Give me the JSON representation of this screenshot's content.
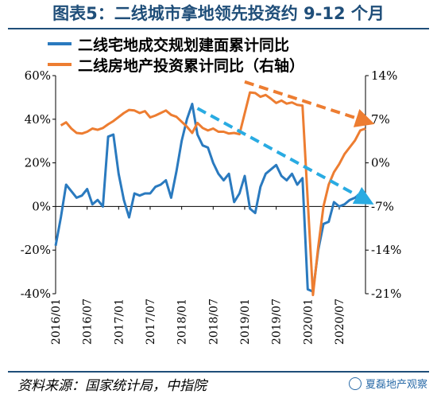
{
  "figure": {
    "title": "图表5：二线城市拿地领先投资约 9-12 个月",
    "source": "资料来源：国家统计局，中指院",
    "watermark": "夏磊地产观察"
  },
  "chart_data": {
    "type": "line",
    "title": "图表5：二线城市拿地领先投资约 9-12 个月",
    "x_ticks": [
      "2016/01",
      "2016/07",
      "2017/01",
      "2017/07",
      "2018/01",
      "2018/07",
      "2019/01",
      "2019/07",
      "2020/01",
      "2020/07"
    ],
    "x_range": [
      "2016/01",
      "2020/12"
    ],
    "y_left": {
      "ticks": [
        -40,
        -20,
        0,
        20,
        40,
        60
      ],
      "range": [
        -40,
        60
      ],
      "unit": "%"
    },
    "y_right": {
      "ticks": [
        -21,
        -14,
        -7,
        0,
        7,
        14
      ],
      "range": [
        -21,
        14
      ],
      "unit": "%"
    },
    "grid": false,
    "legend_position": "top",
    "series": [
      {
        "name": "二线宅地成交规划建面累计同比",
        "axis": "left",
        "color": "#2a7abf",
        "points": [
          [
            "2016/01",
            -18
          ],
          [
            "2016/02",
            -5
          ],
          [
            "2016/03",
            10
          ],
          [
            "2016/04",
            7
          ],
          [
            "2016/05",
            4
          ],
          [
            "2016/06",
            5
          ],
          [
            "2016/07",
            8
          ],
          [
            "2016/08",
            1
          ],
          [
            "2016/09",
            3
          ],
          [
            "2016/10",
            0
          ],
          [
            "2016/11",
            32
          ],
          [
            "2016/12",
            33
          ],
          [
            "2017/01",
            15
          ],
          [
            "2017/02",
            3
          ],
          [
            "2017/03",
            -5
          ],
          [
            "2017/04",
            6
          ],
          [
            "2017/05",
            5
          ],
          [
            "2017/06",
            6
          ],
          [
            "2017/07",
            6
          ],
          [
            "2017/08",
            9
          ],
          [
            "2017/09",
            10
          ],
          [
            "2017/10",
            12
          ],
          [
            "2017/11",
            4
          ],
          [
            "2017/12",
            16
          ],
          [
            "2018/01",
            30
          ],
          [
            "2018/02",
            40
          ],
          [
            "2018/03",
            47
          ],
          [
            "2018/04",
            33
          ],
          [
            "2018/05",
            28
          ],
          [
            "2018/06",
            27
          ],
          [
            "2018/07",
            20
          ],
          [
            "2018/08",
            15
          ],
          [
            "2018/09",
            12
          ],
          [
            "2018/10",
            15
          ],
          [
            "2018/11",
            2
          ],
          [
            "2018/12",
            6
          ],
          [
            "2019/01",
            14
          ],
          [
            "2019/02",
            -1
          ],
          [
            "2019/03",
            -3
          ],
          [
            "2019/04",
            9
          ],
          [
            "2019/05",
            15
          ],
          [
            "2019/06",
            17
          ],
          [
            "2019/07",
            19
          ],
          [
            "2019/08",
            14
          ],
          [
            "2019/09",
            12
          ],
          [
            "2019/10",
            15
          ],
          [
            "2019/11",
            10
          ],
          [
            "2019/12",
            13
          ],
          [
            "2020/01",
            -38
          ],
          [
            "2020/02",
            -39
          ],
          [
            "2020/03",
            -20
          ],
          [
            "2020/04",
            -8
          ],
          [
            "2020/05",
            -7
          ],
          [
            "2020/06",
            2
          ],
          [
            "2020/07",
            0
          ],
          [
            "2020/08",
            1
          ],
          [
            "2020/09",
            3
          ],
          [
            "2020/10",
            4
          ],
          [
            "2020/11",
            6
          ],
          [
            "2020/12",
            3
          ]
        ]
      },
      {
        "name": "二线房地产投资累计同比（右轴）",
        "axis": "right",
        "color": "#ed7d31",
        "points": [
          [
            "2016/02",
            6
          ],
          [
            "2016/03",
            6.5
          ],
          [
            "2016/04",
            5.5
          ],
          [
            "2016/05",
            4.8
          ],
          [
            "2016/06",
            4.7
          ],
          [
            "2016/07",
            5
          ],
          [
            "2016/08",
            5.5
          ],
          [
            "2016/09",
            5.3
          ],
          [
            "2016/10",
            5.6
          ],
          [
            "2016/11",
            6.2
          ],
          [
            "2016/12",
            6.7
          ],
          [
            "2017/02",
            8
          ],
          [
            "2017/03",
            8.5
          ],
          [
            "2017/04",
            8.4
          ],
          [
            "2017/05",
            8
          ],
          [
            "2017/06",
            8.3
          ],
          [
            "2017/07",
            7.3
          ],
          [
            "2017/08",
            7.6
          ],
          [
            "2017/09",
            8
          ],
          [
            "2017/10",
            8.4
          ],
          [
            "2017/11",
            7.7
          ],
          [
            "2017/12",
            7.4
          ],
          [
            "2018/02",
            5.8
          ],
          [
            "2018/03",
            4.8
          ],
          [
            "2018/04",
            6.4
          ],
          [
            "2018/05",
            5.6
          ],
          [
            "2018/06",
            5.2
          ],
          [
            "2018/07",
            5.5
          ],
          [
            "2018/08",
            5
          ],
          [
            "2018/09",
            5
          ],
          [
            "2018/10",
            4.7
          ],
          [
            "2018/11",
            4.8
          ],
          [
            "2018/12",
            4.6
          ],
          [
            "2019/02",
            11.3
          ],
          [
            "2019/03",
            11.2
          ],
          [
            "2019/04",
            10.6
          ],
          [
            "2019/05",
            10.9
          ],
          [
            "2019/06",
            10.3
          ],
          [
            "2019/07",
            9.6
          ],
          [
            "2019/08",
            10
          ],
          [
            "2019/09",
            9.5
          ],
          [
            "2019/10",
            9.7
          ],
          [
            "2019/11",
            9.3
          ],
          [
            "2019/12",
            9.2
          ],
          [
            "2020/02",
            -21.2
          ],
          [
            "2020/03",
            -13.5
          ],
          [
            "2020/04",
            -7
          ],
          [
            "2020/05",
            -3.5
          ],
          [
            "2020/06",
            -1.5
          ],
          [
            "2020/07",
            -0.2
          ],
          [
            "2020/08",
            1.4
          ],
          [
            "2020/09",
            2.5
          ],
          [
            "2020/10",
            3.6
          ],
          [
            "2020/11",
            5.2
          ],
          [
            "2020/12",
            5.5
          ]
        ]
      }
    ],
    "annotations": [
      {
        "type": "dashed-arrow",
        "color": "#29abe2",
        "axis": "left",
        "from": [
          "2018/04",
          45
        ],
        "to": [
          "2020/12",
          3
        ]
      },
      {
        "type": "dashed-arrow",
        "color": "#ed7d31",
        "axis": "right",
        "from": [
          "2019/01",
          13
        ],
        "to": [
          "2020/12",
          6.7
        ]
      }
    ]
  }
}
